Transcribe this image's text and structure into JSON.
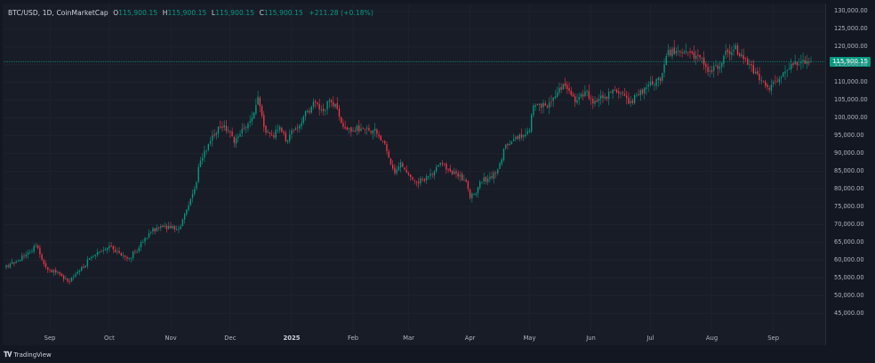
{
  "legend": {
    "symbol": "BTC/USD, 1D, CoinMarketCap",
    "open_key": "O",
    "open": "115,900.15",
    "high_key": "H",
    "high": "115,900.15",
    "low_key": "L",
    "low": "115,900.15",
    "close_key": "C",
    "close": "115,900.15",
    "change": "+211.28 (+0.18%)"
  },
  "price_tag": "115,900.15",
  "footer": {
    "brand": "TradingView"
  },
  "colors": {
    "up": "#089981",
    "down": "#f23645",
    "background": "#181c27",
    "grid": "#232632"
  },
  "chart_data": {
    "type": "candlestick",
    "ylim": [
      40000,
      132000
    ],
    "y_ticks": [
      "130,000.00",
      "125,000.00",
      "120,000.00",
      "115,000.00",
      "110,000.00",
      "105,000.00",
      "100,000.00",
      "95,000.00",
      "90,000.00",
      "85,000.00",
      "80,000.00",
      "75,000.00",
      "70,000.00",
      "65,000.00",
      "60,000.00",
      "55,000.00",
      "50,000.00",
      "45,000.00"
    ],
    "y_tick_values": [
      130000,
      125000,
      120000,
      115000,
      110000,
      105000,
      100000,
      95000,
      90000,
      85000,
      80000,
      75000,
      70000,
      65000,
      60000,
      55000,
      50000,
      45000
    ],
    "x_ticks": [
      {
        "label": "Sep",
        "index": 22,
        "bold": false
      },
      {
        "label": "Oct",
        "index": 52,
        "bold": false
      },
      {
        "label": "Nov",
        "index": 83,
        "bold": false
      },
      {
        "label": "Dec",
        "index": 113,
        "bold": false
      },
      {
        "label": "2025",
        "index": 144,
        "bold": true
      },
      {
        "label": "Feb",
        "index": 175,
        "bold": false
      },
      {
        "label": "Mar",
        "index": 203,
        "bold": false
      },
      {
        "label": "Apr",
        "index": 234,
        "bold": false
      },
      {
        "label": "May",
        "index": 264,
        "bold": false
      },
      {
        "label": "Jun",
        "index": 295,
        "bold": false
      },
      {
        "label": "Jul",
        "index": 325,
        "bold": false
      },
      {
        "label": "Aug",
        "index": 356,
        "bold": false
      },
      {
        "label": "Sep",
        "index": 387,
        "bold": false
      }
    ],
    "last_price": 115900.15,
    "anchors": [
      [
        0,
        58500
      ],
      [
        5,
        59500
      ],
      [
        10,
        61500
      ],
      [
        15,
        64000
      ],
      [
        20,
        58000
      ],
      [
        28,
        55500
      ],
      [
        32,
        54000
      ],
      [
        38,
        58000
      ],
      [
        45,
        61500
      ],
      [
        52,
        64000
      ],
      [
        57,
        62000
      ],
      [
        62,
        60500
      ],
      [
        67,
        63500
      ],
      [
        72,
        67500
      ],
      [
        78,
        69500
      ],
      [
        83,
        69000
      ],
      [
        88,
        69500
      ],
      [
        90,
        73000
      ],
      [
        95,
        80000
      ],
      [
        98,
        88000
      ],
      [
        103,
        93500
      ],
      [
        108,
        97500
      ],
      [
        112,
        96500
      ],
      [
        115,
        93000
      ],
      [
        118,
        95500
      ],
      [
        122,
        98500
      ],
      [
        125,
        101500
      ],
      [
        127,
        106000
      ],
      [
        130,
        97500
      ],
      [
        134,
        95000
      ],
      [
        138,
        97500
      ],
      [
        141,
        93500
      ],
      [
        144,
        96500
      ],
      [
        148,
        98000
      ],
      [
        152,
        102000
      ],
      [
        156,
        104500
      ],
      [
        160,
        102000
      ],
      [
        163,
        105000
      ],
      [
        166,
        104000
      ],
      [
        170,
        97500
      ],
      [
        175,
        96500
      ],
      [
        179,
        97000
      ],
      [
        183,
        96500
      ],
      [
        186,
        97000
      ],
      [
        190,
        93500
      ],
      [
        194,
        87000
      ],
      [
        196,
        84500
      ],
      [
        199,
        87500
      ],
      [
        203,
        84000
      ],
      [
        207,
        82000
      ],
      [
        212,
        83500
      ],
      [
        216,
        85000
      ],
      [
        220,
        87000
      ],
      [
        224,
        85000
      ],
      [
        228,
        83500
      ],
      [
        232,
        82000
      ],
      [
        234,
        77500
      ],
      [
        236,
        78500
      ],
      [
        240,
        82000
      ],
      [
        244,
        83500
      ],
      [
        248,
        85500
      ],
      [
        252,
        92500
      ],
      [
        256,
        94000
      ],
      [
        260,
        94500
      ],
      [
        264,
        96500
      ],
      [
        266,
        103500
      ],
      [
        269,
        104000
      ],
      [
        272,
        103500
      ],
      [
        275,
        104500
      ],
      [
        279,
        108500
      ],
      [
        282,
        109000
      ],
      [
        285,
        106500
      ],
      [
        288,
        105000
      ],
      [
        292,
        107500
      ],
      [
        295,
        105500
      ],
      [
        298,
        104500
      ],
      [
        302,
        106000
      ],
      [
        306,
        108000
      ],
      [
        310,
        107000
      ],
      [
        314,
        104000
      ],
      [
        318,
        106500
      ],
      [
        322,
        108500
      ],
      [
        326,
        109500
      ],
      [
        330,
        110500
      ],
      [
        333,
        117500
      ],
      [
        336,
        119500
      ],
      [
        340,
        118500
      ],
      [
        344,
        118500
      ],
      [
        348,
        117500
      ],
      [
        352,
        115000
      ],
      [
        356,
        113000
      ],
      [
        360,
        114500
      ],
      [
        362,
        117500
      ],
      [
        365,
        118000
      ],
      [
        368,
        120500
      ],
      [
        370,
        117500
      ],
      [
        374,
        115000
      ],
      [
        378,
        113000
      ],
      [
        382,
        110500
      ],
      [
        385,
        108000
      ],
      [
        388,
        110500
      ],
      [
        391,
        111500
      ],
      [
        394,
        113500
      ],
      [
        397,
        115000
      ],
      [
        401,
        116000
      ],
      [
        404,
        116000
      ],
      [
        406,
        115900.15
      ]
    ]
  }
}
